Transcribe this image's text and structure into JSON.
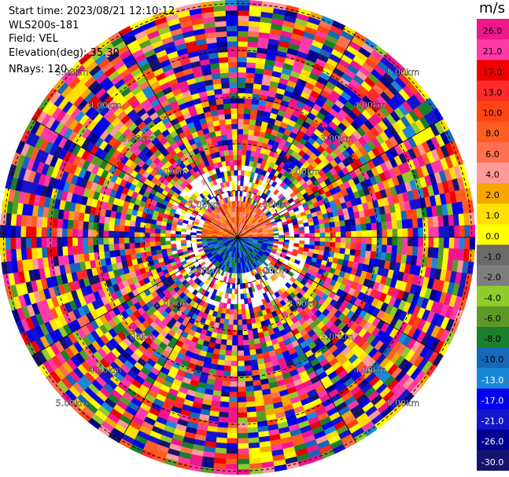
{
  "info": {
    "start_time": "Start time: 2023/08/21 12:10:12",
    "instrument": "WLS200s-181",
    "field": "Field: VEL",
    "elevation": "Elevation(deg): 35.30",
    "nrays": "NRays: 120"
  },
  "chart_data": {
    "type": "heatmap",
    "projection": "polar",
    "nrays": 120,
    "ring_labels": [
      "1.00km",
      "2.00km",
      "3.00km",
      "4.00km",
      "5.00km"
    ],
    "colorbar": {
      "unit": "m/s",
      "ticks": [
        "26.0",
        "21.0",
        "17.0",
        "13.0",
        "10.0",
        "8.0",
        "6.0",
        "4.0",
        "2.0",
        "1.0",
        "0.0",
        "-1.0",
        "-2.0",
        "-4.0",
        "-6.0",
        "-8.0",
        "-10.0",
        "-13.0",
        "-17.0",
        "-21.0",
        "-26.0",
        "-30.0"
      ],
      "colors": [
        "#f0168c",
        "#ff3aa8",
        "#ee0000",
        "#ff2a2a",
        "#ff4411",
        "#ff5d22",
        "#fd7050",
        "#ff9a9a",
        "#f7a800",
        "#ffe000",
        "#ffff00",
        "#6b6b6b",
        "#7e7e7e",
        "#8fcc2c",
        "#5c9a28",
        "#1a7f2a",
        "#1668b8",
        "#1a88d8",
        "#0000ee",
        "#1414cc",
        "#000090",
        "#14146e"
      ]
    }
  }
}
